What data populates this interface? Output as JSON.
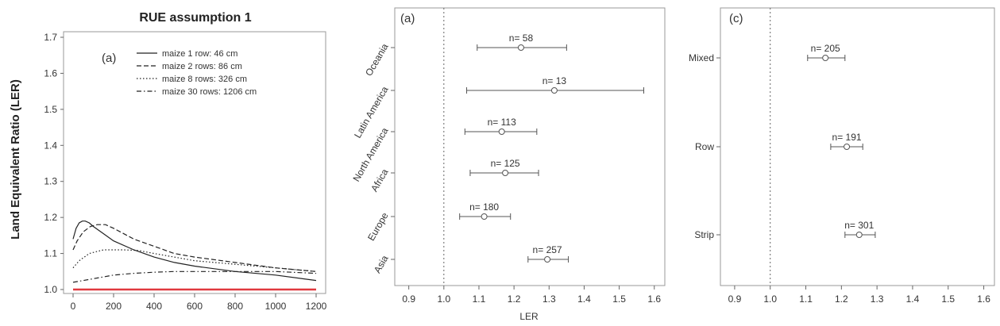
{
  "chart_data": [
    {
      "type": "line",
      "title": "RUE assumption 1",
      "ylabel": "Land Equivalent Ratio (LER)",
      "xlabel": "",
      "panel_label": "(a)",
      "xlim": [
        0,
        1200
      ],
      "ylim": [
        1.0,
        1.7
      ],
      "x_ticks": [
        "0",
        "200",
        "400",
        "600",
        "800",
        "1000",
        "1200"
      ],
      "y_ticks": [
        "1.0",
        "1.1",
        "1.2",
        "1.3",
        "1.4",
        "1.5",
        "1.6",
        "1.7"
      ],
      "legend_position": "top-right",
      "series": [
        {
          "name": "maize 1 row: 46 cm",
          "style": "solid",
          "x": [
            0,
            15,
            30,
            46,
            60,
            80,
            100,
            150,
            200,
            300,
            400,
            500,
            600,
            800,
            1000,
            1200
          ],
          "y": [
            1.14,
            1.17,
            1.185,
            1.19,
            1.19,
            1.185,
            1.175,
            1.155,
            1.135,
            1.11,
            1.09,
            1.075,
            1.065,
            1.05,
            1.04,
            1.025
          ]
        },
        {
          "name": "maize 2 rows: 86 cm",
          "style": "dashed",
          "x": [
            0,
            20,
            50,
            86,
            120,
            160,
            200,
            300,
            400,
            500,
            600,
            800,
            1000,
            1200
          ],
          "y": [
            1.11,
            1.135,
            1.16,
            1.175,
            1.18,
            1.18,
            1.17,
            1.14,
            1.12,
            1.1,
            1.09,
            1.075,
            1.06,
            1.05
          ]
        },
        {
          "name": "maize 8 rows: 326 cm",
          "style": "dotted",
          "x": [
            0,
            30,
            80,
            150,
            250,
            326,
            400,
            500,
            600,
            800,
            1000,
            1200
          ],
          "y": [
            1.06,
            1.08,
            1.1,
            1.11,
            1.11,
            1.108,
            1.1,
            1.09,
            1.08,
            1.07,
            1.06,
            1.05
          ]
        },
        {
          "name": "maize 30 rows: 1206 cm",
          "style": "dashdot",
          "x": [
            0,
            100,
            200,
            300,
            400,
            500,
            600,
            700,
            800,
            1000,
            1200
          ],
          "y": [
            1.02,
            1.03,
            1.04,
            1.045,
            1.048,
            1.05,
            1.05,
            1.05,
            1.05,
            1.05,
            1.045
          ]
        }
      ],
      "reference_line": {
        "y": 1.0,
        "color": "#e0393e"
      }
    },
    {
      "type": "scatter",
      "subtype": "dot-whisker",
      "panel_label": "(a)",
      "xlabel": "LER",
      "xlim": [
        0.86,
        1.63
      ],
      "x_ticks": [
        "0.9",
        "1.0",
        "1.1",
        "1.2",
        "1.3",
        "1.4",
        "1.5",
        "1.6"
      ],
      "reference_line": {
        "x": 1.0,
        "style": "dotted"
      },
      "categories": [
        "Oceania",
        "Latin America",
        "North America",
        "Africa",
        "Europe",
        "Asia"
      ],
      "points": [
        {
          "category": "Oceania",
          "estimate": 1.22,
          "lower": 1.095,
          "upper": 1.35,
          "n_label": "n= 58"
        },
        {
          "category": "Latin America",
          "estimate": 1.315,
          "lower": 1.065,
          "upper": 1.57,
          "n_label": "n= 13"
        },
        {
          "category": "North America",
          "estimate": 1.165,
          "lower": 1.06,
          "upper": 1.265,
          "n_label": "n= 113"
        },
        {
          "category": "Africa",
          "estimate": 1.175,
          "lower": 1.075,
          "upper": 1.27,
          "n_label": "n= 125"
        },
        {
          "category": "Europe",
          "estimate": 1.115,
          "lower": 1.045,
          "upper": 1.19,
          "n_label": "n= 180"
        },
        {
          "category": "Asia",
          "estimate": 1.295,
          "lower": 1.24,
          "upper": 1.355,
          "n_label": "n= 257"
        }
      ]
    },
    {
      "type": "scatter",
      "subtype": "dot-whisker",
      "panel_label": "(c)",
      "xlabel": "",
      "xlim": [
        0.86,
        1.63
      ],
      "x_ticks": [
        "0.9",
        "1.0",
        "1.1",
        "1.2",
        "1.3",
        "1.4",
        "1.5",
        "1.6"
      ],
      "reference_line": {
        "x": 1.0,
        "style": "dotted"
      },
      "categories": [
        "Mixed",
        "Row",
        "Strip"
      ],
      "points": [
        {
          "category": "Mixed",
          "estimate": 1.155,
          "lower": 1.105,
          "upper": 1.21,
          "n_label": "n= 205"
        },
        {
          "category": "Row",
          "estimate": 1.215,
          "lower": 1.17,
          "upper": 1.26,
          "n_label": "n= 191"
        },
        {
          "category": "Strip",
          "estimate": 1.25,
          "lower": 1.21,
          "upper": 1.295,
          "n_label": "n= 301"
        }
      ]
    }
  ]
}
